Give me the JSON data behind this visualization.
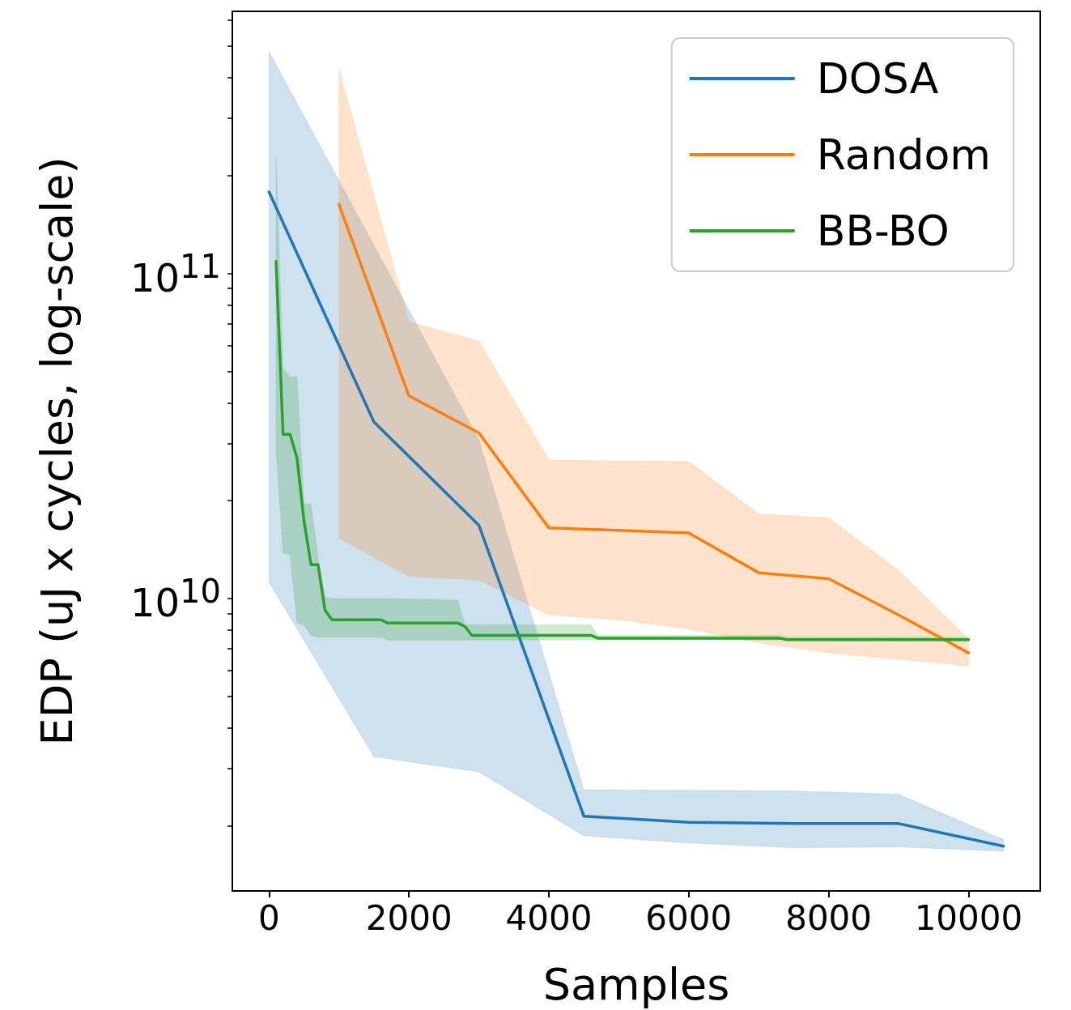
{
  "chart_data": {
    "type": "line",
    "xlabel": "Samples",
    "ylabel": "EDP (uJ x cycles, log-scale)",
    "xlim": [
      -525,
      11025
    ],
    "xticks": [
      0,
      2000,
      4000,
      6000,
      8000,
      10000
    ],
    "ylim": [
      1260000000.0,
      640000000000.0
    ],
    "yticks": [
      {
        "value": 2000000000.0,
        "label": null
      },
      {
        "value": 3000000000.0,
        "label": null
      },
      {
        "value": 4000000000.0,
        "label": null
      },
      {
        "value": 5000000000.0,
        "label": null
      },
      {
        "value": 6000000000.0,
        "label": null
      },
      {
        "value": 7000000000.0,
        "label": null
      },
      {
        "value": 8000000000.0,
        "label": null
      },
      {
        "value": 9000000000.0,
        "label": null
      },
      {
        "value": 10000000000.0,
        "label": "10$^{10}$"
      },
      {
        "value": 20000000000.0,
        "label": null
      },
      {
        "value": 30000000000.0,
        "label": null
      },
      {
        "value": 40000000000.0,
        "label": null
      },
      {
        "value": 50000000000.0,
        "label": null
      },
      {
        "value": 60000000000.0,
        "label": null
      },
      {
        "value": 70000000000.0,
        "label": null
      },
      {
        "value": 80000000000.0,
        "label": null
      },
      {
        "value": 90000000000.0,
        "label": null
      },
      {
        "value": 100000000000.0,
        "label": "10$^{11}$"
      },
      {
        "value": 200000000000.0,
        "label": null
      },
      {
        "value": 300000000000.0,
        "label": null
      },
      {
        "value": 400000000000.0,
        "label": null
      },
      {
        "value": 500000000000.0,
        "label": null
      },
      {
        "value": 600000000000.0,
        "label": null
      }
    ],
    "log": "y",
    "grid": false,
    "legend": "top right",
    "marker": "none",
    "line_style": "solid",
    "series": [
      {
        "name": "DOSA",
        "color": "#1f77b4",
        "x": [
          0,
          1500,
          3000,
          4500,
          6000,
          7500,
          9000,
          10500
        ],
        "values": [
          178000000000.0,
          34900000000.0,
          16800000000.0,
          2140000000.0,
          2050000000.0,
          2030000000.0,
          2030000000.0,
          1730000000.0
        ],
        "lower": [
          11200000000.0,
          3260000000.0,
          2930000000.0,
          1860000000.0,
          1770000000.0,
          1710000000.0,
          1720000000.0,
          1670000000.0
        ],
        "upper": [
          481000000000.0,
          122000000000.0,
          30800000000.0,
          2580000000.0,
          2570000000.0,
          2560000000.0,
          2500000000.0,
          1810000000.0
        ]
      },
      {
        "name": "Random",
        "color": "#ff7f0e",
        "x": [
          1000,
          2000,
          3000,
          4000,
          5000,
          6000,
          7000,
          8000,
          9000,
          10000
        ],
        "values": [
          163000000000.0,
          42000000000.0,
          32300000000.0,
          16500000000.0,
          16200000000.0,
          15900000000.0,
          12000000000.0,
          11500000000.0,
          8900000000.0,
          6800000000.0
        ],
        "lower": [
          15300000000.0,
          11700000000.0,
          11400000000.0,
          8900000000.0,
          8600000000.0,
          8050000000.0,
          7300000000.0,
          6800000000.0,
          6500000000.0,
          6200000000.0
        ],
        "upper": [
          425000000000.0,
          71000000000.0,
          62000000000.0,
          26700000000.0,
          26500000000.0,
          26400000000.0,
          18200000000.0,
          17700000000.0,
          12200000000.0,
          7500000000.0
        ]
      },
      {
        "name": "BB-BO",
        "color": "#2ca02c",
        "x": [
          100,
          200,
          300,
          400,
          500,
          600,
          700,
          800,
          900,
          1600,
          1700,
          2700,
          2800,
          2900,
          4600,
          4700,
          7300,
          7400,
          10000
        ],
        "values": [
          109000000000.0,
          32000000000.0,
          32000000000.0,
          27000000000.0,
          17300000000.0,
          12700000000.0,
          12700000000.0,
          9200000000.0,
          8600000000.0,
          8600000000.0,
          8400000000.0,
          8400000000.0,
          8200000000.0,
          7700000000.0,
          7700000000.0,
          7550000000.0,
          7550000000.0,
          7470000000.0,
          7470000000.0
        ],
        "lower": [
          28600000000.0,
          13800000000.0,
          13600000000.0,
          8400000000.0,
          8300000000.0,
          7700000000.0,
          7600000000.0,
          7600000000.0,
          7600000000.0,
          7600000000.0,
          7450000000.0,
          7450000000.0,
          7450000000.0,
          7450000000.0,
          7450000000.0,
          7450000000.0,
          7450000000.0,
          7450000000.0,
          7400000000.0
        ],
        "upper": [
          230000000000.0,
          51000000000.0,
          48000000000.0,
          48000000000.0,
          19500000000.0,
          19500000000.0,
          13300000000.0,
          10100000000.0,
          10000000000.0,
          10000000000.0,
          10000000000.0,
          9900000000.0,
          8300000000.0,
          8300000000.0,
          8300000000.0,
          7700000000.0,
          7700000000.0,
          7600000000.0,
          7600000000.0
        ]
      }
    ]
  }
}
